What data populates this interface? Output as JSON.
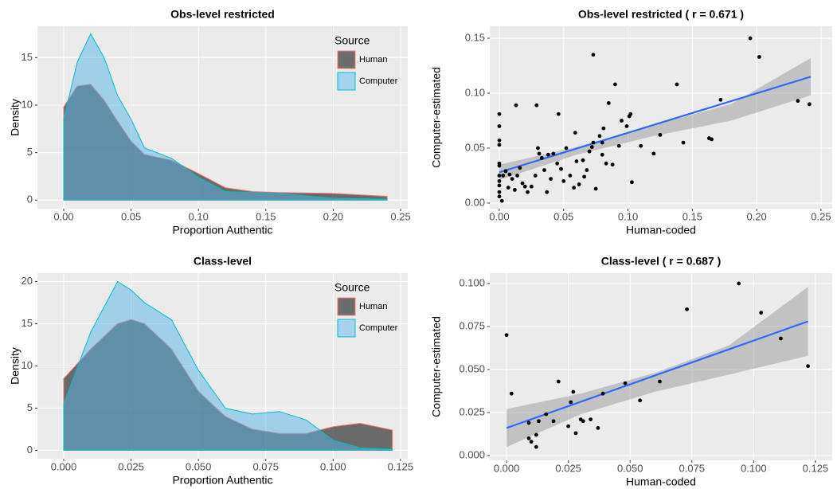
{
  "chart_data": [
    {
      "type": "density",
      "title": "Obs-level restricted",
      "x_label": "Proportion Authentic",
      "y_label": "Density",
      "legend_title": "Source",
      "legend": "top-right",
      "xlim": [
        -0.0195,
        0.2553
      ],
      "ylim": [
        -0.9,
        18.3
      ],
      "xticks": [
        {
          "value": 0,
          "label": "0.00"
        },
        {
          "value": 0.05,
          "label": "0.05"
        },
        {
          "value": 0.1,
          "label": "0.10"
        },
        {
          "value": 0.15,
          "label": "0.15"
        },
        {
          "value": 0.2,
          "label": "0.20"
        },
        {
          "value": 0.25,
          "label": "0.25"
        }
      ],
      "yticks": [
        0,
        5,
        10,
        15
      ],
      "grid": true,
      "x": [
        0,
        0.01,
        0.02,
        0.03,
        0.04,
        0.05,
        0.06,
        0.08,
        0.1,
        0.12,
        0.14,
        0.16,
        0.2,
        0.24
      ],
      "series": [
        {
          "name": "Human",
          "color": "#333333",
          "edge": "#f8766d",
          "alpha": 0.7,
          "values": [
            9.8,
            12,
            12.2,
            10.5,
            8.3,
            6.2,
            4.8,
            4.2,
            2.8,
            1.3,
            0.9,
            0.8,
            0.7,
            0.4
          ]
        },
        {
          "name": "Computer",
          "color": "#56b4e9",
          "edge": "#00bfc4",
          "alpha": 0.5,
          "values": [
            8.5,
            14.5,
            17.5,
            15,
            11,
            8.5,
            5.5,
            4.4,
            2.4,
            0.9,
            0.8,
            0.7,
            0.2,
            0.1
          ]
        }
      ]
    },
    {
      "type": "scatter",
      "title": "Obs-level restricted ( r =  0.671 )",
      "x_label": "Human-coded",
      "y_label": "Computer-estimated",
      "xlim": [
        -0.0074,
        0.2587
      ],
      "ylim": [
        -0.0051,
        0.1609
      ],
      "xticks": [
        {
          "value": 0,
          "label": "0.00"
        },
        {
          "value": 0.05,
          "label": "0.05"
        },
        {
          "value": 0.1,
          "label": "0.10"
        },
        {
          "value": 0.15,
          "label": "0.15"
        },
        {
          "value": 0.2,
          "label": "0.20"
        },
        {
          "value": 0.25,
          "label": "0.25"
        }
      ],
      "yticks": [
        {
          "value": 0,
          "label": "0.00"
        },
        {
          "value": 0.05,
          "label": "0.05"
        },
        {
          "value": 0.1,
          "label": "0.10"
        },
        {
          "value": 0.15,
          "label": "0.15"
        }
      ],
      "grid": true,
      "color": "#000000",
      "points": {
        "x": [
          0.195,
          0.202,
          0.073,
          0.241,
          0.232,
          0.172,
          0.138,
          0.09,
          0.085,
          0.102,
          0.101,
          0.099,
          0.095,
          0.081,
          0.078,
          0.073,
          0.059,
          0.046,
          0.029,
          0.013,
          0,
          0,
          0,
          0,
          0,
          0,
          0,
          0,
          0,
          0,
          0,
          0.002,
          0.003,
          0.005,
          0.008,
          0.01,
          0.012,
          0.014,
          0.016,
          0.018,
          0.022,
          0.025,
          0.028,
          0.03,
          0.031,
          0.033,
          0.035,
          0.037,
          0.04,
          0.042,
          0.045,
          0.048,
          0.05,
          0.052,
          0.055,
          0.058,
          0.06,
          0.062,
          0.065,
          0.068,
          0.07,
          0.072,
          0.075,
          0.08,
          0.083,
          0.088,
          0.093,
          0.103,
          0.11,
          0.12,
          0.125,
          0.143,
          0.163,
          0.165,
          0.08,
          0.066,
          0.038,
          0.02,
          0.007
        ],
        "values": [
          0.15,
          0.133,
          0.135,
          0.09,
          0.093,
          0.094,
          0.108,
          0.108,
          0.091,
          0.081,
          0.079,
          0.07,
          0.075,
          0.068,
          0.061,
          0.055,
          0.064,
          0.081,
          0.089,
          0.089,
          0.081,
          0.07,
          0.057,
          0.053,
          0.036,
          0.034,
          0.025,
          0.02,
          0.016,
          0.01,
          0.006,
          0.002,
          0.025,
          0.029,
          0.026,
          0.022,
          0.012,
          0.025,
          0.032,
          0.018,
          0.01,
          0.015,
          0.025,
          0.05,
          0.045,
          0.041,
          0.03,
          0.01,
          0.022,
          0.045,
          0.036,
          0.031,
          0.02,
          0.05,
          0.025,
          0.014,
          0.038,
          0.017,
          0.039,
          0.03,
          0.047,
          0.051,
          0.013,
          0.044,
          0.036,
          0.035,
          0.052,
          0.019,
          0.052,
          0.045,
          0.062,
          0.055,
          0.059,
          0.058,
          0.055,
          0.024,
          0.044,
          0.015,
          0.014
        ]
      },
      "fit": {
        "color": "#3366ff",
        "x": [
          0,
          0.242
        ],
        "values": [
          0.028,
          0.115
        ]
      },
      "band": {
        "color": "#999999",
        "x": [
          0,
          0.06,
          0.12,
          0.18,
          0.242
        ],
        "lower": [
          0.021,
          0.044,
          0.061,
          0.075,
          0.098
        ],
        "upper": [
          0.035,
          0.051,
          0.071,
          0.09,
          0.132
        ]
      }
    },
    {
      "type": "density",
      "title": "Class-level",
      "x_label": "Proportion Authentic",
      "y_label": "Density",
      "legend_title": "Source",
      "legend": "top-right",
      "xlim": [
        -0.00975,
        0.1277
      ],
      "ylim": [
        -1,
        21
      ],
      "xticks": [
        {
          "value": 0,
          "label": "0.000"
        },
        {
          "value": 0.025,
          "label": "0.025"
        },
        {
          "value": 0.05,
          "label": "0.050"
        },
        {
          "value": 0.075,
          "label": "0.075"
        },
        {
          "value": 0.1,
          "label": "0.100"
        },
        {
          "value": 0.125,
          "label": "0.125"
        }
      ],
      "yticks": [
        0,
        5,
        10,
        15,
        20
      ],
      "grid": true,
      "x": [
        0,
        0.01,
        0.02,
        0.025,
        0.03,
        0.04,
        0.05,
        0.06,
        0.07,
        0.08,
        0.09,
        0.1,
        0.11,
        0.122
      ],
      "series": [
        {
          "name": "Human",
          "color": "#333333",
          "edge": "#f8766d",
          "alpha": 0.7,
          "values": [
            8.5,
            12,
            15,
            15.5,
            15,
            12,
            7,
            4,
            2.5,
            2,
            2,
            2.8,
            3.2,
            2.4
          ]
        },
        {
          "name": "Computer",
          "color": "#56b4e9",
          "edge": "#00bfc4",
          "alpha": 0.5,
          "values": [
            5.5,
            14,
            20,
            19,
            17.5,
            15.5,
            9.5,
            5,
            4.3,
            4.6,
            3.6,
            1.2,
            0.3,
            0.1
          ]
        }
      ]
    },
    {
      "type": "scatter",
      "title": "Class-level ( r =  0.687 )",
      "x_label": "Human-coded",
      "y_label": "Computer-estimated",
      "xlim": [
        -0.0068,
        0.1318
      ],
      "ylim": [
        -0.0028,
        0.106
      ],
      "xticks": [
        {
          "value": 0,
          "label": "0.000"
        },
        {
          "value": 0.025,
          "label": "0.025"
        },
        {
          "value": 0.05,
          "label": "0.050"
        },
        {
          "value": 0.075,
          "label": "0.075"
        },
        {
          "value": 0.1,
          "label": "0.100"
        },
        {
          "value": 0.125,
          "label": "0.125"
        }
      ],
      "yticks": [
        {
          "value": 0,
          "label": "0.000"
        },
        {
          "value": 0.025,
          "label": "0.025"
        },
        {
          "value": 0.05,
          "label": "0.050"
        },
        {
          "value": 0.075,
          "label": "0.075"
        },
        {
          "value": 0.1,
          "label": "0.100"
        }
      ],
      "grid": true,
      "color": "#000000",
      "points": {
        "x": [
          0,
          0.002,
          0.009,
          0.009,
          0.01,
          0.012,
          0.012,
          0.013,
          0.016,
          0.019,
          0.021,
          0.025,
          0.026,
          0.027,
          0.028,
          0.03,
          0.031,
          0.034,
          0.037,
          0.039,
          0.048,
          0.054,
          0.062,
          0.073,
          0.094,
          0.103,
          0.111,
          0.122
        ],
        "values": [
          0.07,
          0.036,
          0.019,
          0.01,
          0.008,
          0.005,
          0.012,
          0.02,
          0.024,
          0.02,
          0.043,
          0.017,
          0.031,
          0.037,
          0.013,
          0.021,
          0.02,
          0.021,
          0.016,
          0.036,
          0.042,
          0.032,
          0.043,
          0.085,
          0.1,
          0.083,
          0.068,
          0.052
        ]
      },
      "fit": {
        "color": "#3366ff",
        "x": [
          0,
          0.122
        ],
        "values": [
          0.016,
          0.078
        ]
      },
      "band": {
        "color": "#999999",
        "x": [
          0,
          0.03,
          0.06,
          0.09,
          0.122
        ],
        "lower": [
          0.005,
          0.024,
          0.037,
          0.047,
          0.058
        ],
        "upper": [
          0.027,
          0.036,
          0.048,
          0.064,
          0.098
        ]
      }
    }
  ]
}
